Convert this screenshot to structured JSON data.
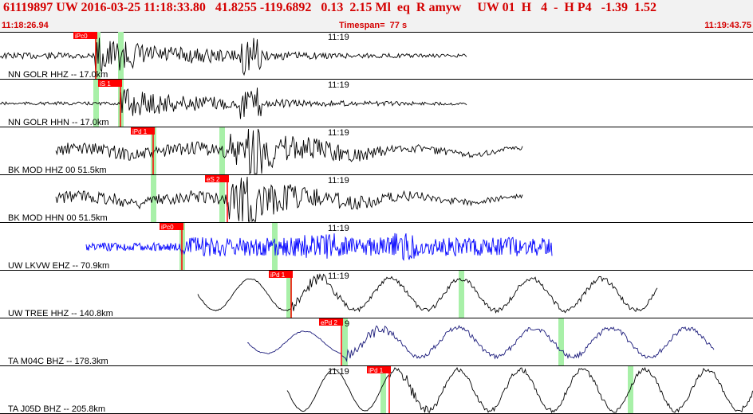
{
  "header": {
    "title": "61119897 UW 2016-03-25 11:18:33.80   41.8255 -119.6892   0.13  2.15 Ml  eq  R amyw     UW 01  H   4  -  H P4   -1.39  1.52",
    "start_time": "11:18:26.94",
    "timespan": "Timespan=  77 s",
    "end_time": "11:19:43.75"
  },
  "colors": {
    "header_text": "#d40000",
    "pick_flag": "#ff0000",
    "pick_window": "#a8f0a8",
    "trace_black": "#000000",
    "trace_blue": "#0000ff",
    "trace_navy": "#1a1a7a"
  },
  "traces": [
    {
      "label": "NN GOLR HHZ -- 17.0km",
      "minute_label": "11:19",
      "pick": "iPc0",
      "color_key": "trace_black"
    },
    {
      "label": "NN GOLR HHN -- 17.0km",
      "minute_label": "11:19",
      "pick": "iS 1",
      "color_key": "trace_black"
    },
    {
      "label": "BK MOD HHZ 00 51.5km",
      "minute_label": "11:19",
      "pick": "iPd 1",
      "color_key": "trace_black"
    },
    {
      "label": "BK MOD HHN 00 51.5km",
      "minute_label": "11:19",
      "pick": "eS 2",
      "color_key": "trace_black"
    },
    {
      "label": "UW LKVW EHZ -- 70.9km",
      "minute_label": "11:19",
      "pick": "iPc0",
      "color_key": "trace_blue"
    },
    {
      "label": "UW TREE HHZ -- 140.8km",
      "minute_label": "11:19",
      "pick": "iPd 1",
      "color_key": "trace_black"
    },
    {
      "label": "TA M04C BHZ -- 178.3km",
      "minute_label": "9",
      "pick": "ePd 2",
      "color_key": "trace_navy"
    },
    {
      "label": "TA J05D BHZ -- 205.8km",
      "minute_label": "11:19",
      "pick": "iPd 1",
      "color_key": "trace_black"
    }
  ]
}
